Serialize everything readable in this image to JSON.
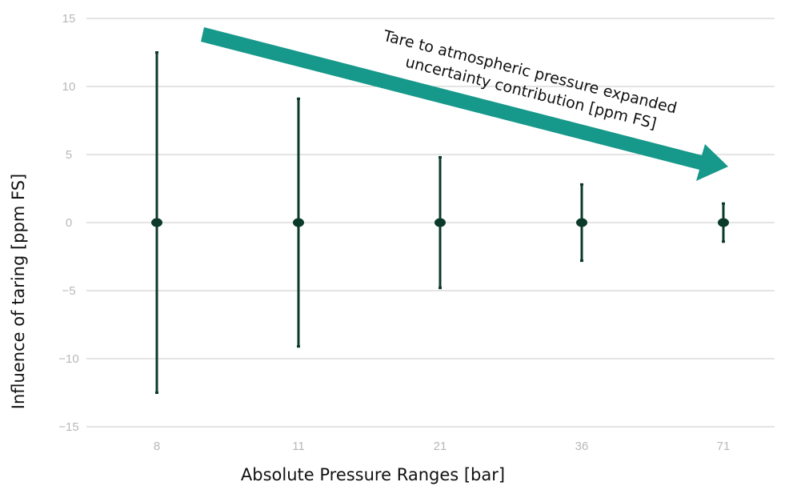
{
  "chart_data": {
    "type": "scatter",
    "subtype": "error-bar",
    "title": "",
    "xlabel": "Absolute Pressure Ranges [bar]",
    "ylabel": "Influence of taring [ppm FS]",
    "categories": [
      "8",
      "11",
      "21",
      "36",
      "71"
    ],
    "values": [
      0,
      0,
      0,
      0,
      0
    ],
    "error_upper": [
      12.5,
      9.1,
      4.8,
      2.8,
      1.4
    ],
    "error_lower": [
      -12.5,
      -9.1,
      -4.8,
      -2.8,
      -1.4
    ],
    "ylim": [
      -15,
      15
    ],
    "yticks": [
      "15",
      "10",
      "5",
      "0",
      "-5",
      "-10",
      "-15"
    ],
    "grid": true,
    "legend": "none",
    "annotation": {
      "line1": "Tare to atmospheric pressure expanded",
      "line2": "uncertainty contribution [ppm FS]"
    },
    "colors": {
      "series": "#0b3a2a",
      "arrow": "#16988a",
      "grid": "#c8c8c8",
      "tick_text": "#b8b8b8"
    }
  }
}
